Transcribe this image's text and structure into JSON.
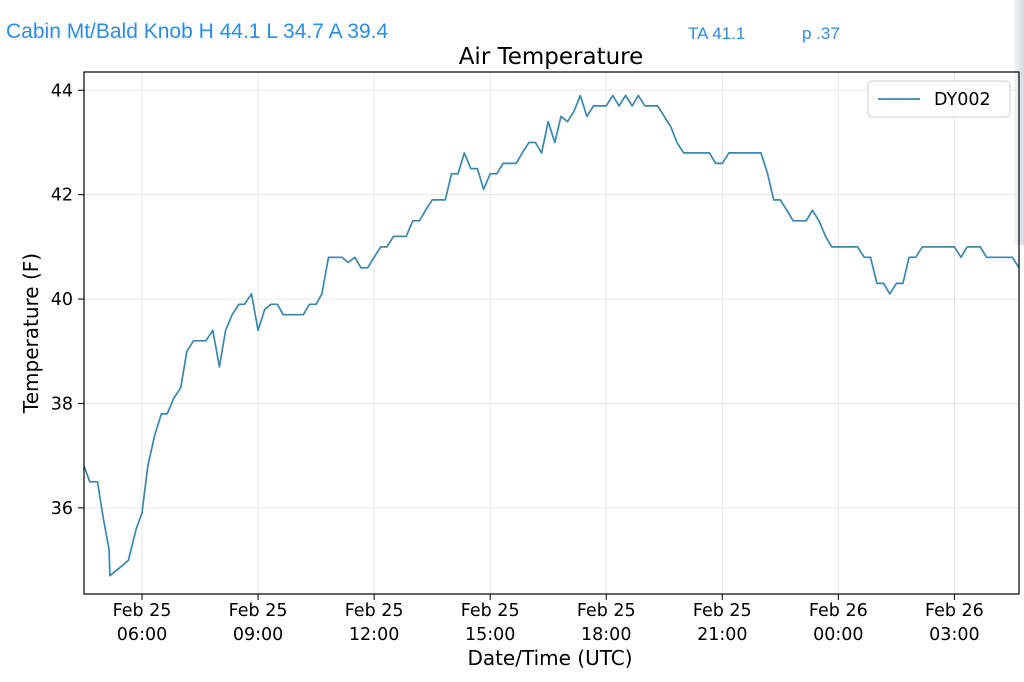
{
  "header": {
    "station_summary": "Cabin Mt/Bald Knob H 44.1 L 34.7 A 39.4",
    "ta": "TA 41.1",
    "p": "p .37"
  },
  "colors": {
    "header_text": "#2b8ce6",
    "series_line": "#3a87ad",
    "grid": "#e6e6e6"
  },
  "chart_data": {
    "type": "line",
    "title": "Air Temperature",
    "xlabel": "Date/Time (UTC)",
    "ylabel": "Temperature (F)",
    "xlim_hours": [
      4.5,
      28.67
    ],
    "ylim": [
      34.35,
      44.35
    ],
    "y_ticks": [
      "36",
      "38",
      "40",
      "42",
      "44"
    ],
    "x_ticks": [
      {
        "hour": 6,
        "line1": "Feb 25",
        "line2": "06:00"
      },
      {
        "hour": 9,
        "line1": "Feb 25",
        "line2": "09:00"
      },
      {
        "hour": 12,
        "line1": "Feb 25",
        "line2": "12:00"
      },
      {
        "hour": 15,
        "line1": "Feb 25",
        "line2": "15:00"
      },
      {
        "hour": 18,
        "line1": "Feb 25",
        "line2": "18:00"
      },
      {
        "hour": 21,
        "line1": "Feb 25",
        "line2": "21:00"
      },
      {
        "hour": 24,
        "line1": "Feb 26",
        "line2": "00:00"
      },
      {
        "hour": 27,
        "line1": "Feb 26",
        "line2": "03:00"
      }
    ],
    "grid": true,
    "legend_position": "top-right",
    "series": [
      {
        "name": "DY002",
        "color": "#3a87ad",
        "points": [
          [
            4.5,
            36.8
          ],
          [
            4.65,
            36.5
          ],
          [
            4.85,
            36.5
          ],
          [
            5.0,
            35.8
          ],
          [
            5.15,
            35.2
          ],
          [
            5.15,
            35.2
          ],
          [
            5.17,
            34.7
          ],
          [
            5.5,
            34.9
          ],
          [
            5.5,
            34.9
          ],
          [
            5.65,
            35.0
          ],
          [
            5.85,
            35.6
          ],
          [
            6.0,
            35.9
          ],
          [
            6.15,
            36.8
          ],
          [
            6.33,
            37.4
          ],
          [
            6.5,
            37.8
          ],
          [
            6.65,
            37.8
          ],
          [
            6.82,
            38.1
          ],
          [
            7.0,
            38.3
          ],
          [
            7.16,
            39.0
          ],
          [
            7.33,
            39.2
          ],
          [
            7.5,
            39.2
          ],
          [
            7.65,
            39.2
          ],
          [
            7.83,
            39.4
          ],
          [
            8.0,
            38.7
          ],
          [
            8.16,
            39.4
          ],
          [
            8.33,
            39.7
          ],
          [
            8.5,
            39.9
          ],
          [
            8.65,
            39.9
          ],
          [
            8.83,
            40.1
          ],
          [
            9.0,
            39.4
          ],
          [
            9.17,
            39.8
          ],
          [
            9.33,
            39.9
          ],
          [
            9.5,
            39.9
          ],
          [
            9.65,
            39.7
          ],
          [
            9.83,
            39.7
          ],
          [
            10.0,
            39.7
          ],
          [
            10.17,
            39.7
          ],
          [
            10.33,
            39.9
          ],
          [
            10.5,
            39.9
          ],
          [
            10.65,
            40.1
          ],
          [
            10.82,
            40.8
          ],
          [
            11.0,
            40.8
          ],
          [
            11.17,
            40.8
          ],
          [
            11.33,
            40.7
          ],
          [
            11.5,
            40.8
          ],
          [
            11.66,
            40.6
          ],
          [
            11.83,
            40.6
          ],
          [
            12.0,
            40.8
          ],
          [
            12.17,
            41.0
          ],
          [
            12.33,
            41.0
          ],
          [
            12.5,
            41.2
          ],
          [
            12.67,
            41.2
          ],
          [
            12.83,
            41.2
          ],
          [
            13.0,
            41.5
          ],
          [
            13.17,
            41.5
          ],
          [
            13.33,
            41.7
          ],
          [
            13.5,
            41.9
          ],
          [
            13.67,
            41.9
          ],
          [
            13.84,
            41.9
          ],
          [
            14.0,
            42.4
          ],
          [
            14.17,
            42.4
          ],
          [
            14.33,
            42.8
          ],
          [
            14.5,
            42.5
          ],
          [
            14.67,
            42.5
          ],
          [
            14.83,
            42.1
          ],
          [
            15.0,
            42.4
          ],
          [
            15.17,
            42.4
          ],
          [
            15.33,
            42.6
          ],
          [
            15.5,
            42.6
          ],
          [
            15.67,
            42.6
          ],
          [
            15.83,
            42.8
          ],
          [
            16.0,
            43.0
          ],
          [
            16.17,
            43.0
          ],
          [
            16.33,
            42.8
          ],
          [
            16.5,
            43.4
          ],
          [
            16.67,
            43.0
          ],
          [
            16.83,
            43.5
          ],
          [
            17.0,
            43.4
          ],
          [
            17.17,
            43.6
          ],
          [
            17.33,
            43.9
          ],
          [
            17.5,
            43.5
          ],
          [
            17.67,
            43.7
          ],
          [
            17.83,
            43.7
          ],
          [
            18.0,
            43.7
          ],
          [
            18.17,
            43.9
          ],
          [
            18.33,
            43.7
          ],
          [
            18.5,
            43.9
          ],
          [
            18.67,
            43.7
          ],
          [
            18.83,
            43.9
          ],
          [
            19.0,
            43.7
          ],
          [
            19.17,
            43.7
          ],
          [
            19.33,
            43.7
          ],
          [
            19.5,
            43.5
          ],
          [
            19.67,
            43.3
          ],
          [
            19.83,
            43.0
          ],
          [
            20.0,
            42.8
          ],
          [
            20.17,
            42.8
          ],
          [
            20.33,
            42.8
          ],
          [
            20.5,
            42.8
          ],
          [
            20.67,
            42.8
          ],
          [
            20.83,
            42.6
          ],
          [
            21.0,
            42.6
          ],
          [
            21.17,
            42.8
          ],
          [
            21.33,
            42.8
          ],
          [
            21.5,
            42.8
          ],
          [
            21.67,
            42.8
          ],
          [
            21.83,
            42.8
          ],
          [
            22.0,
            42.8
          ],
          [
            22.17,
            42.4
          ],
          [
            22.33,
            41.9
          ],
          [
            22.5,
            41.9
          ],
          [
            22.67,
            41.7
          ],
          [
            22.83,
            41.5
          ],
          [
            23.0,
            41.5
          ],
          [
            23.17,
            41.5
          ],
          [
            23.33,
            41.7
          ],
          [
            23.5,
            41.5
          ],
          [
            23.67,
            41.2
          ],
          [
            23.83,
            41.0
          ],
          [
            24.0,
            41.0
          ],
          [
            24.17,
            41.0
          ],
          [
            24.33,
            41.0
          ],
          [
            24.5,
            41.0
          ],
          [
            24.67,
            40.8
          ],
          [
            24.83,
            40.8
          ],
          [
            25.0,
            40.3
          ],
          [
            25.17,
            40.3
          ],
          [
            25.33,
            40.1
          ],
          [
            25.5,
            40.3
          ],
          [
            25.67,
            40.3
          ],
          [
            25.83,
            40.8
          ],
          [
            26.0,
            40.8
          ],
          [
            26.17,
            41.0
          ],
          [
            26.33,
            41.0
          ],
          [
            26.5,
            41.0
          ],
          [
            26.67,
            41.0
          ],
          [
            26.83,
            41.0
          ],
          [
            27.0,
            41.0
          ],
          [
            27.17,
            40.8
          ],
          [
            27.33,
            41.0
          ],
          [
            27.5,
            41.0
          ],
          [
            27.67,
            41.0
          ],
          [
            27.83,
            40.8
          ],
          [
            28.0,
            40.8
          ],
          [
            28.17,
            40.8
          ],
          [
            28.33,
            40.8
          ],
          [
            28.5,
            40.8
          ],
          [
            28.67,
            40.6
          ]
        ]
      }
    ]
  }
}
